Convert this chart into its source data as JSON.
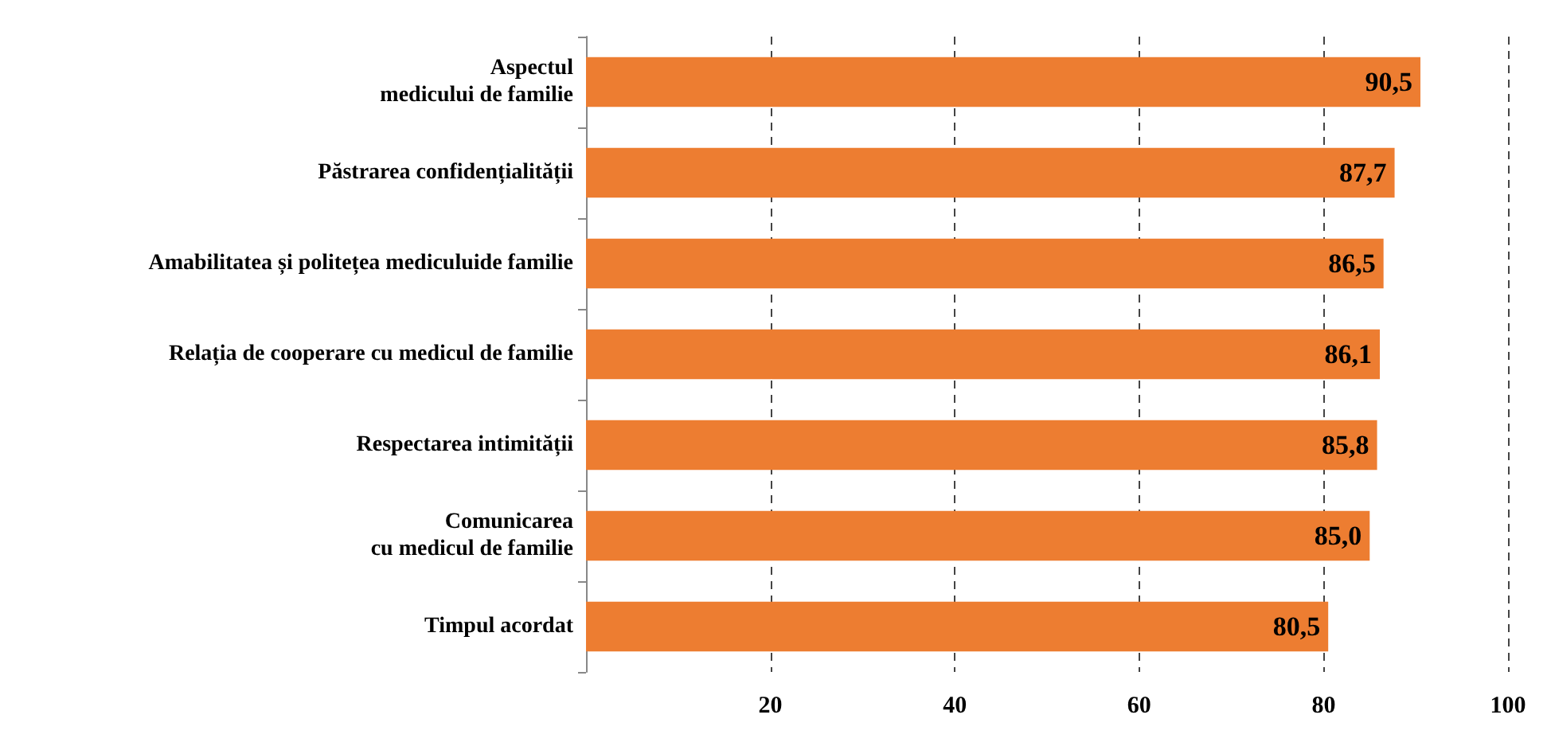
{
  "chart_data": {
    "type": "bar",
    "orientation": "horizontal",
    "categories": [
      "Aspectul\nmedicului de familie",
      "Păstrarea confidențialității",
      "Amabilitatea și politețea mediculuide familie",
      "Relația de cooperare cu medicul de familie",
      "Respectarea intimității",
      "Comunicarea\ncu medicul de familie",
      "Timpul acordat"
    ],
    "values": [
      90.5,
      87.7,
      86.5,
      86.1,
      85.8,
      85.0,
      80.5
    ],
    "value_labels": [
      "90,5",
      "87,7",
      "86,5",
      "86,1",
      "85,8",
      "85,0",
      "80,5"
    ],
    "color": "#ed7d31",
    "xlim": [
      0,
      100
    ],
    "xticks": [
      {
        "value": 0,
        "label": null
      },
      20,
      40,
      60,
      80,
      100
    ],
    "grid": "x"
  }
}
